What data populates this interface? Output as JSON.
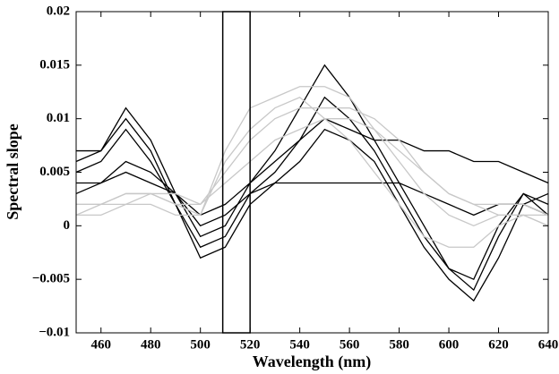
{
  "chart_data": {
    "type": "line",
    "x_label": "Wavelength (nm)",
    "y_label": "Spectral slope",
    "x": [
      450,
      460,
      470,
      480,
      490,
      500,
      510,
      520,
      530,
      540,
      550,
      560,
      570,
      580,
      590,
      600,
      610,
      620,
      630,
      640
    ],
    "series": [
      {
        "color": "#000000",
        "values": [
          0.007,
          0.007,
          0.011,
          0.008,
          0.003,
          -0.001,
          0.0,
          0.004,
          0.007,
          0.011,
          0.015,
          0.012,
          0.008,
          0.004,
          0.0,
          -0.004,
          -0.006,
          -0.001,
          0.003,
          0.002
        ]
      },
      {
        "color": "#000000",
        "values": [
          0.005,
          0.006,
          0.009,
          0.006,
          0.002,
          -0.002,
          -0.001,
          0.003,
          0.005,
          0.008,
          0.012,
          0.01,
          0.007,
          0.003,
          -0.001,
          -0.004,
          -0.005,
          0.0,
          0.003,
          0.001
        ]
      },
      {
        "color": "#000000",
        "values": [
          0.003,
          0.004,
          0.006,
          0.005,
          0.003,
          0.0,
          0.001,
          0.003,
          0.004,
          0.004,
          0.004,
          0.004,
          0.004,
          0.004,
          0.003,
          0.002,
          0.001,
          0.002,
          0.002,
          0.001
        ]
      },
      {
        "color": "#000000",
        "values": [
          0.004,
          0.004,
          0.005,
          0.004,
          0.003,
          0.001,
          0.002,
          0.004,
          0.006,
          0.008,
          0.01,
          0.009,
          0.008,
          0.008,
          0.007,
          0.007,
          0.006,
          0.006,
          0.005,
          0.004
        ]
      },
      {
        "color": "#000000",
        "values": [
          0.006,
          0.007,
          0.01,
          0.007,
          0.002,
          -0.003,
          -0.002,
          0.002,
          0.004,
          0.006,
          0.009,
          0.008,
          0.006,
          0.002,
          -0.002,
          -0.005,
          -0.007,
          -0.003,
          0.002,
          0.003
        ]
      },
      {
        "color": "#c8c8c8",
        "values": [
          0.001,
          0.002,
          0.003,
          0.003,
          0.002,
          0.001,
          0.007,
          0.011,
          0.012,
          0.013,
          0.013,
          0.012,
          0.009,
          0.006,
          0.003,
          0.001,
          0.0,
          0.001,
          0.001,
          0.0
        ]
      },
      {
        "color": "#c8c8c8",
        "values": [
          0.002,
          0.002,
          0.002,
          0.003,
          0.002,
          0.002,
          0.005,
          0.008,
          0.01,
          0.011,
          0.011,
          0.011,
          0.01,
          0.008,
          0.005,
          0.003,
          0.002,
          0.002,
          0.002,
          0.001
        ]
      },
      {
        "color": "#c8c8c8",
        "values": [
          0.001,
          0.001,
          0.002,
          0.002,
          0.001,
          0.001,
          0.006,
          0.009,
          0.011,
          0.012,
          0.01,
          0.008,
          0.005,
          0.002,
          -0.001,
          -0.002,
          -0.002,
          0.0,
          0.001,
          0.0
        ]
      },
      {
        "color": "#c8c8c8",
        "values": [
          0.002,
          0.002,
          0.003,
          0.003,
          0.003,
          0.002,
          0.004,
          0.006,
          0.008,
          0.009,
          0.01,
          0.01,
          0.009,
          0.007,
          0.005,
          0.003,
          0.002,
          0.001,
          0.001,
          0.001
        ]
      }
    ],
    "highlight_x": [
      509,
      520
    ],
    "xlim": [
      450,
      640
    ],
    "xticks": [
      460,
      480,
      500,
      520,
      540,
      560,
      580,
      600,
      620,
      640
    ],
    "ylim": [
      -0.01,
      0.02
    ],
    "yticks": [
      {
        "value": -0.01,
        "label": "−0.01"
      },
      {
        "value": -0.005,
        "label": "−0.005"
      },
      0,
      0.005,
      0.01,
      0.015,
      0.02
    ],
    "grid": false
  }
}
